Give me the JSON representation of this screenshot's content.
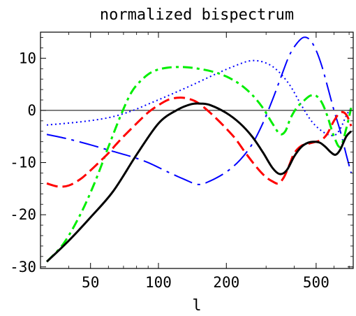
{
  "chart_data": {
    "type": "line",
    "title": "normalized bispectrum",
    "xlabel": "l",
    "ylabel": "",
    "x_scale": "log",
    "xlim": [
      30,
      730
    ],
    "ylim": [
      -30.3,
      15
    ],
    "x_ticks": [
      {
        "value": 50,
        "label": "50"
      },
      {
        "value": 100,
        "label": "100"
      },
      {
        "value": 200,
        "label": "200"
      },
      {
        "value": 500,
        "label": "500"
      }
    ],
    "y_ticks": [
      {
        "value": 10,
        "label": "10"
      },
      {
        "value": 0,
        "label": "0"
      },
      {
        "value": -10,
        "label": "-10"
      },
      {
        "value": -20,
        "label": "-20"
      },
      {
        "value": -30,
        "label": "-30"
      }
    ],
    "grid": false,
    "zero_line": true,
    "series": [
      {
        "color": "#0000ff",
        "style": "dotted",
        "x": [
          32,
          45,
          60,
          75,
          90,
          110,
          140,
          180,
          220,
          255,
          290,
          330,
          380,
          430,
          480,
          540,
          600,
          640,
          680,
          715
        ],
        "y": [
          -2.8,
          -2.2,
          -1.4,
          -0.2,
          1.2,
          2.8,
          4.8,
          7.0,
          8.6,
          9.5,
          9.3,
          8.0,
          5.0,
          1.0,
          -2.2,
          -4.2,
          -4.8,
          -3.5,
          -1.0,
          0.5
        ]
      },
      {
        "color": "#0000ff",
        "style": "long-dash-dot",
        "x": [
          32,
          40,
          50,
          60,
          75,
          90,
          110,
          130,
          150,
          170,
          200,
          230,
          260,
          290,
          320,
          350,
          380,
          410,
          440,
          470,
          500,
          530,
          560,
          600,
          640,
          680,
          715
        ],
        "y": [
          -4.6,
          -5.5,
          -6.6,
          -7.6,
          -8.8,
          -10.0,
          -11.8,
          -13.2,
          -14.2,
          -13.5,
          -11.8,
          -9.5,
          -6.5,
          -2.5,
          2.0,
          6.5,
          10.5,
          12.8,
          14.0,
          13.5,
          11.5,
          8.5,
          4.8,
          0.0,
          -4.0,
          -8.5,
          -12.0
        ]
      },
      {
        "color": "#00ee00",
        "style": "dash-dot",
        "x": [
          32,
          38,
          45,
          52,
          60,
          68,
          76,
          85,
          95,
          110,
          130,
          150,
          175,
          200,
          230,
          260,
          290,
          320,
          345,
          365,
          385,
          410,
          440,
          470,
          500,
          530,
          560,
          600,
          640,
          680,
          715
        ],
        "y": [
          -29.0,
          -25.5,
          -20.0,
          -14.0,
          -7.0,
          -1.0,
          3.5,
          6.0,
          7.5,
          8.2,
          8.3,
          8.0,
          7.4,
          6.5,
          5.0,
          3.0,
          0.5,
          -2.5,
          -4.5,
          -4.0,
          -1.5,
          0.5,
          1.8,
          2.8,
          2.8,
          1.5,
          -1.0,
          -5.0,
          -7.0,
          -3.5,
          0.5
        ]
      },
      {
        "color": "#ff0000",
        "style": "dashed",
        "x": [
          32,
          36,
          40,
          45,
          50,
          55,
          60,
          65,
          70,
          80,
          90,
          100,
          110,
          120,
          130,
          145,
          160,
          180,
          200,
          220,
          240,
          260,
          280,
          300,
          320,
          340,
          360,
          380,
          400,
          430,
          460,
          500,
          530,
          560,
          600,
          640,
          680,
          715
        ],
        "y": [
          -14.0,
          -14.6,
          -14.4,
          -13.2,
          -11.5,
          -9.8,
          -8.2,
          -6.5,
          -5.0,
          -2.5,
          -0.4,
          1.0,
          2.0,
          2.4,
          2.4,
          1.8,
          0.5,
          -1.5,
          -3.5,
          -5.5,
          -7.8,
          -9.8,
          -11.5,
          -12.8,
          -13.6,
          -14.0,
          -12.8,
          -10.5,
          -8.2,
          -6.8,
          -6.4,
          -6.0,
          -5.6,
          -4.5,
          -2.0,
          -0.4,
          -0.8,
          -3.0
        ]
      },
      {
        "color": "#000000",
        "style": "solid",
        "x": [
          32,
          40,
          50,
          63,
          80,
          100,
          120,
          140,
          155,
          170,
          200,
          230,
          260,
          290,
          320,
          345,
          370,
          400,
          430,
          460,
          490,
          520,
          550,
          580,
          610,
          640,
          680,
          715
        ],
        "y": [
          -29.0,
          -25.0,
          -20.5,
          -15.5,
          -8.5,
          -2.5,
          0.0,
          1.2,
          1.3,
          1.0,
          -0.5,
          -2.5,
          -5.0,
          -8.0,
          -11.0,
          -12.2,
          -11.5,
          -8.8,
          -7.0,
          -6.2,
          -6.0,
          -6.2,
          -7.0,
          -8.0,
          -8.5,
          -7.5,
          -5.0,
          -4.0
        ]
      }
    ]
  }
}
